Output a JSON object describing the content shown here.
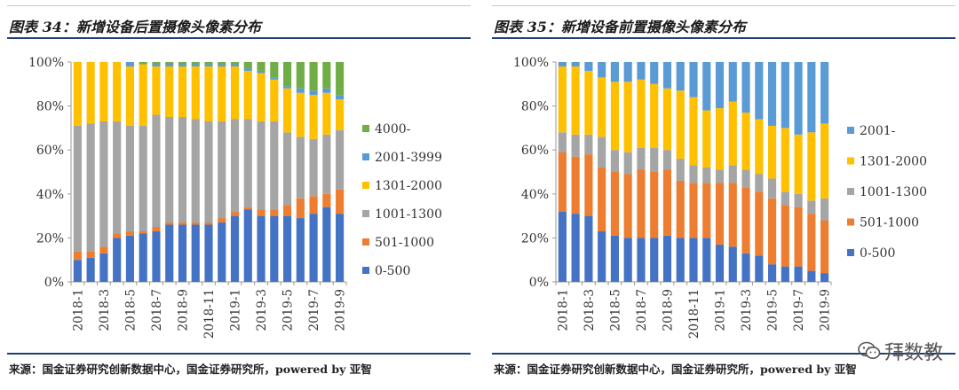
{
  "charts": [
    {
      "title": "图表 34：新增设备后置摄像头像素分布",
      "source": "来源：国金证券研究创新数据中心，国金证券研究所，powered by 亚智"
    },
    {
      "title": "图表 35：新增设备前置摄像头像素分布",
      "source": "来源：国金证券研究创新数据中心，国金证券研究所，powered by 亚智"
    }
  ],
  "watermark": {
    "text": "拜数教",
    "icon": "wechat-icon"
  },
  "colors": {
    "0-500": "#4472c4",
    "501-1000": "#ed7d31",
    "1001-1300": "#a5a5a5",
    "1301-2000": "#ffc000",
    "2001-3999": "#5b9bd5",
    "4000-": "#70ad47",
    "2001-": "#5b9bd5"
  },
  "chart_data": [
    {
      "type": "bar",
      "stacked": true,
      "title": "",
      "ylim": [
        0,
        100
      ],
      "yticks": [
        "0%",
        "20%",
        "40%",
        "60%",
        "80%",
        "100%"
      ],
      "grid": false,
      "legend": "right",
      "categories": [
        "2018-1",
        "2018-2",
        "2018-3",
        "2018-4",
        "2018-5",
        "2018-6",
        "2018-7",
        "2018-8",
        "2018-9",
        "2018-10",
        "2018-11",
        "2018-12",
        "2019-1",
        "2019-2",
        "2019-3",
        "2019-4",
        "2019-5",
        "2019-6",
        "2019-7",
        "2019-8",
        "2019-9"
      ],
      "category_labels": [
        "2018-1",
        "",
        "2018-3",
        "",
        "2018-5",
        "",
        "2018-7",
        "",
        "2018-9",
        "",
        "2018-11",
        "",
        "2019-1",
        "",
        "2019-3",
        "",
        "2019-5",
        "",
        "2019-7",
        "",
        "2019-9"
      ],
      "series": [
        {
          "name": "0-500",
          "values": [
            10,
            11,
            13,
            20,
            21,
            22,
            23,
            26,
            26,
            26,
            26,
            27,
            30,
            33,
            30,
            30,
            30,
            29,
            31,
            34,
            31
          ]
        },
        {
          "name": "501-1000",
          "values": [
            4,
            3,
            3,
            2,
            2,
            1,
            2,
            1,
            1,
            1,
            1,
            2,
            2,
            1,
            3,
            3,
            5,
            9,
            8,
            6,
            11
          ]
        },
        {
          "name": "1001-1300",
          "values": [
            57,
            58,
            57,
            51,
            48,
            48,
            51,
            48,
            48,
            47,
            46,
            44,
            42,
            40,
            40,
            40,
            33,
            28,
            26,
            27,
            27
          ]
        },
        {
          "name": "1301-2000",
          "values": [
            29,
            28,
            27,
            27,
            27,
            28,
            22,
            23,
            23,
            24,
            25,
            25,
            24,
            22,
            22,
            19,
            20,
            20,
            20,
            19,
            14
          ]
        },
        {
          "name": "2001-3999",
          "values": [
            0,
            0,
            0,
            0,
            2,
            0,
            1,
            1,
            1,
            1,
            1,
            1,
            1,
            1,
            1,
            1,
            1,
            2,
            2,
            2,
            2
          ]
        },
        {
          "name": "4000-",
          "values": [
            0,
            0,
            0,
            0,
            0,
            1,
            1,
            1,
            1,
            1,
            1,
            1,
            1,
            3,
            4,
            7,
            11,
            12,
            13,
            12,
            15
          ]
        }
      ]
    },
    {
      "type": "bar",
      "stacked": true,
      "title": "",
      "ylim": [
        0,
        100
      ],
      "yticks": [
        "0%",
        "20%",
        "40%",
        "60%",
        "80%",
        "100%"
      ],
      "grid": false,
      "legend": "right",
      "categories": [
        "2018-1",
        "2018-2",
        "2018-3",
        "2018-4",
        "2018-5",
        "2018-6",
        "2018-7",
        "2018-8",
        "2018-9",
        "2018-10",
        "2018-11",
        "2018-12",
        "2019-1",
        "2019-2",
        "2019-3",
        "2019-4",
        "2019-5",
        "2019-6",
        "2019-7",
        "2019-8",
        "2019-9"
      ],
      "category_labels": [
        "2018-1",
        "",
        "2018-3",
        "",
        "2018-5",
        "",
        "2018-7",
        "",
        "2018-9",
        "",
        "2018-11",
        "",
        "2019-1",
        "",
        "2019-3",
        "",
        "2019-5",
        "",
        "2019-7",
        "",
        "2019-9"
      ],
      "series": [
        {
          "name": "0-500",
          "values": [
            32,
            31,
            30,
            23,
            21,
            20,
            20,
            20,
            21,
            20,
            20,
            20,
            17,
            16,
            13,
            12,
            8,
            7,
            7,
            5,
            4
          ]
        },
        {
          "name": "501-1000",
          "values": [
            27,
            26,
            28,
            29,
            29,
            29,
            31,
            30,
            30,
            26,
            25,
            25,
            28,
            29,
            30,
            29,
            30,
            28,
            27,
            26,
            24
          ]
        },
        {
          "name": "1001-1300",
          "values": [
            9,
            10,
            9,
            14,
            10,
            10,
            10,
            11,
            9,
            10,
            8,
            7,
            6,
            8,
            8,
            8,
            9,
            6,
            6,
            6,
            10
          ]
        },
        {
          "name": "1301-2000",
          "values": [
            30,
            31,
            29,
            27,
            31,
            32,
            31,
            29,
            28,
            31,
            31,
            26,
            28,
            29,
            26,
            25,
            24,
            29,
            27,
            31,
            34
          ]
        },
        {
          "name": "2001-",
          "values": [
            2,
            2,
            4,
            7,
            9,
            9,
            8,
            10,
            12,
            13,
            16,
            22,
            21,
            18,
            23,
            26,
            29,
            30,
            33,
            32,
            28
          ]
        }
      ]
    }
  ]
}
